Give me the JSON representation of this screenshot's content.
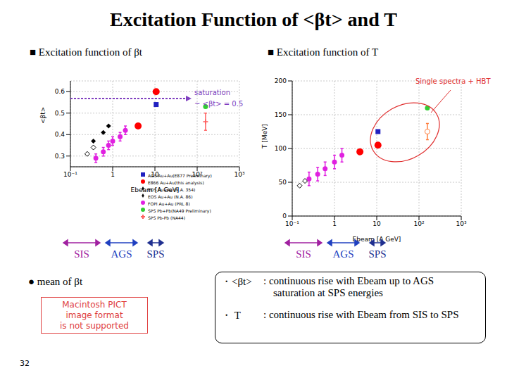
{
  "title": "Excitation Function of <βt> and T",
  "page_number": "32",
  "chart_data": [
    {
      "type": "scatter",
      "title": "■ Excitation function of βt",
      "x_label": "Ebeam [A GeV]",
      "y_label": "<βt>",
      "log": "x",
      "grid": true,
      "legend": "lower right",
      "xlim": [
        0.1,
        1000
      ],
      "xticks": [
        {
          "value": 0.1,
          "label": "10⁻¹"
        },
        1,
        10,
        {
          "value": 100,
          "label": "10²"
        },
        {
          "value": 1000,
          "label": "10³"
        }
      ],
      "ylim": [
        0.25,
        0.65
      ],
      "yticks": [
        0.3,
        0.4,
        0.5,
        0.6
      ],
      "annotation": [
        "saturation",
        "~ <βt> = 0.5"
      ],
      "series": [
        {
          "name": "E866 Au+Au(this analysis)",
          "color": "#ff0000",
          "marker": "circle",
          "x": [
            4,
            10.7
          ],
          "values": [
            0.44,
            0.6
          ]
        },
        {
          "name": "SPS Pb-Pb (NA44)",
          "color": "#ff6060",
          "marker": "cross",
          "x": [
            158
          ],
          "values": [
            0.46
          ],
          "errors": [
            0.04
          ]
        },
        {
          "name": "EOS Au+Au (N.A. 86)",
          "color": "#000000",
          "marker": "diamond",
          "x": [
            0.35,
            0.6,
            0.8
          ],
          "values": [
            0.37,
            0.41,
            0.44
          ]
        },
        {
          "name": "EOS Au+Au (N.A. 354)",
          "color": "#000000",
          "marker": "diamond_open",
          "x": [
            0.25,
            0.35
          ],
          "values": [
            0.31,
            0.34
          ]
        },
        {
          "name": "FOPI Au+Au (PRL 8)",
          "color": "#e020e0",
          "marker": "circle",
          "x": [
            0.4,
            0.6,
            0.8,
            1.0,
            1.5,
            2.0
          ],
          "values": [
            0.29,
            0.32,
            0.35,
            0.37,
            0.39,
            0.42
          ],
          "errors": [
            0.02,
            0.02,
            0.02,
            0.02,
            0.02,
            0.02
          ]
        },
        {
          "name": "AGS Au+Au(E877 Preliminary)",
          "color": "#2020c0",
          "marker": "square",
          "x": [
            10.7
          ],
          "values": [
            0.54
          ]
        },
        {
          "name": "SPS Pb+Pb(NA49 Preliminary)",
          "color": "#33cc33",
          "marker": "circle",
          "x": [
            158
          ],
          "values": [
            0.53
          ]
        }
      ]
    },
    {
      "type": "scatter",
      "title": "■ Excitation function of T",
      "x_label": "Ebeam [A GeV]",
      "y_label": "T [MeV]",
      "log": "x",
      "grid": true,
      "xlim": [
        0.1,
        1000
      ],
      "xticks": [
        {
          "value": 0.1,
          "label": "10⁻¹"
        },
        1,
        10,
        {
          "value": 100,
          "label": "10²"
        },
        {
          "value": 1000,
          "label": "10³"
        }
      ],
      "ylim": [
        0,
        200
      ],
      "yticks": [
        0,
        50,
        100,
        150,
        200
      ],
      "annotation": [
        "Single spectra + HBT"
      ],
      "series": [
        {
          "color": "#ff0000",
          "marker": "circle",
          "x": [
            4,
            10.7
          ],
          "values": [
            95,
            105
          ]
        },
        {
          "color": "#2020c0",
          "marker": "square",
          "x": [
            10.7
          ],
          "values": [
            125
          ]
        },
        {
          "color": "#33cc33",
          "marker": "circle",
          "x": [
            158
          ],
          "values": [
            160
          ]
        },
        {
          "color": "#ff8040",
          "marker": "circle_open",
          "x": [
            158
          ],
          "values": [
            125
          ],
          "errors": [
            12
          ]
        },
        {
          "color": "#e020e0",
          "marker": "circle",
          "x": [
            0.25,
            0.4,
            0.6,
            1.0,
            1.5
          ],
          "values": [
            55,
            62,
            70,
            80,
            90
          ],
          "errors": [
            10,
            10,
            10,
            10,
            10
          ]
        },
        {
          "color": "#000000",
          "marker": "diamond_open",
          "x": [
            0.15,
            0.2
          ],
          "values": [
            45,
            52
          ]
        }
      ]
    }
  ],
  "energy_regions": [
    {
      "label": "SIS",
      "color": "#a020a0"
    },
    {
      "label": "AGS",
      "color": "#2040c0"
    },
    {
      "label": "SPS",
      "color": "#203090"
    }
  ],
  "left_text": {
    "bullet": "● mean of βt",
    "placeholder": [
      "Macintosh PICT",
      "image format",
      "is not supported"
    ]
  },
  "summary": [
    {
      "term": "・<βt>",
      "lines": [
        ": continuous rise with Ebeam up to AGS",
        "saturation at SPS energies"
      ]
    },
    {
      "term": "・ T",
      "lines": [
        ": continuous rise with Ebeam from SIS to SPS"
      ]
    }
  ]
}
